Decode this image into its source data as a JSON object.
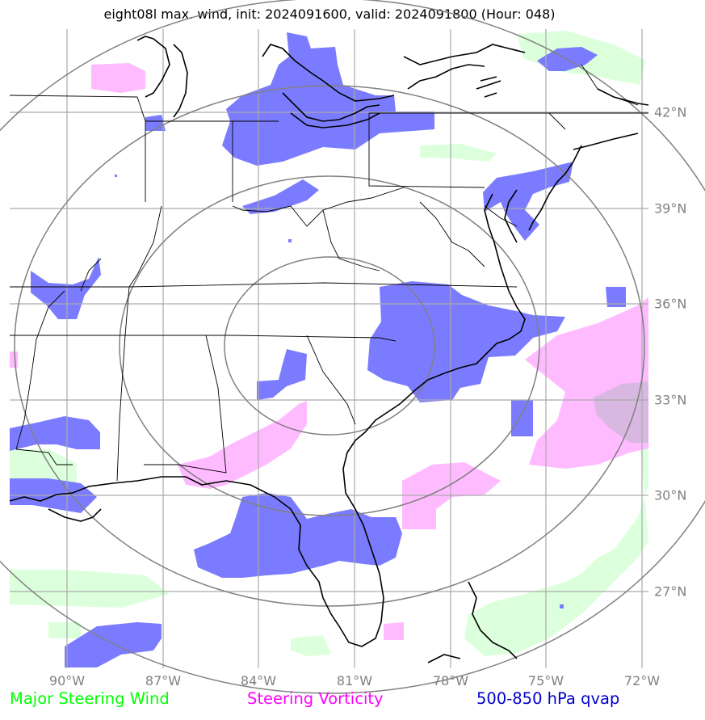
{
  "title": "eight08l max. wind, init: 2024091600, valid: 2024091800 (Hour: 048)",
  "axes": {
    "lon_labels": [
      "90°W",
      "87°W",
      "84°W",
      "81°W",
      "78°W",
      "75°W",
      "72°W"
    ],
    "lat_labels": [
      "42°N",
      "39°N",
      "36°N",
      "33°N",
      "30°N",
      "27°N"
    ]
  },
  "legend": {
    "steering_wind": {
      "label": "Major Steering Wind",
      "color": "#00ff00"
    },
    "vorticity": {
      "label": "Steering Vorticity",
      "color": "#ff00ff"
    },
    "qvap": {
      "label": "500-850 hPa qvap",
      "color": "#0000cc"
    }
  },
  "colors": {
    "qvap_fill": "#7b7bff",
    "vorticity_fill": "#ffbbff",
    "steering_fill": "#dcffdc",
    "coast": "#000000",
    "grid": "#aaaaaa",
    "range_rings": "#808080"
  }
}
